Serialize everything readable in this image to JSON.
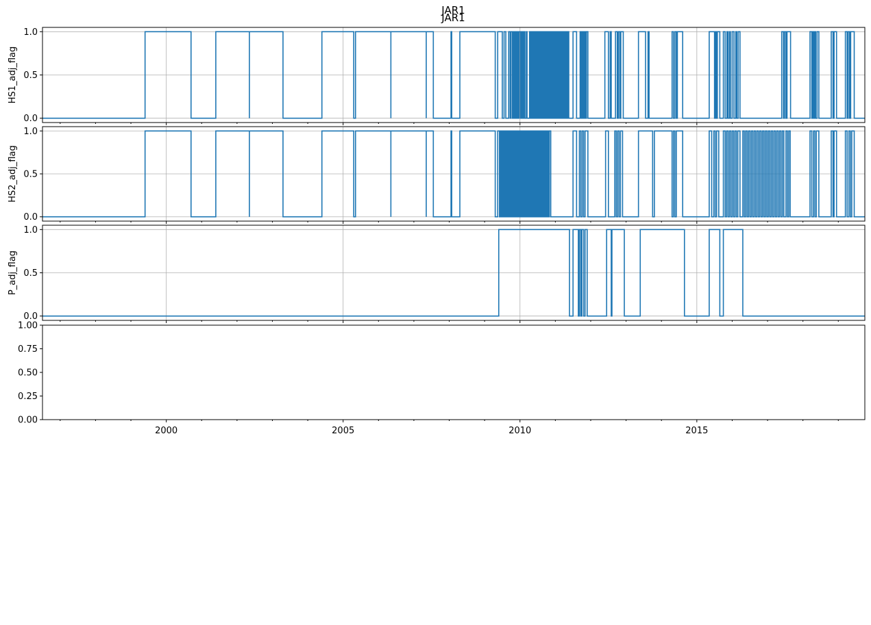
{
  "figure": {
    "suptitle": "JAR1",
    "title": "JAR1"
  },
  "colors": {
    "line": "#1f77b4",
    "grid": "#b0b0b0",
    "axis": "#000000"
  },
  "chart_data": [
    {
      "type": "line",
      "ylabel": "HS1_adj_flag",
      "xlim": [
        1996.5,
        2019.75
      ],
      "ylim": [
        -0.05,
        1.05
      ],
      "yticks": [
        0.0,
        0.5,
        1.0
      ],
      "ytick_labels": [
        "0.0",
        "0.5",
        "1.0"
      ],
      "grid": true,
      "x_tick_labels_visible": false,
      "series": [
        {
          "values_description_free": true,
          "on_intervals": [
            [
              1999.4,
              2000.7
            ],
            [
              2001.4,
              2002.35
            ],
            [
              2002.35,
              2003.3
            ],
            [
              2004.4,
              2005.3
            ],
            [
              2005.35,
              2006.35
            ],
            [
              2006.35,
              2007.35
            ],
            [
              2007.35,
              2007.55
            ],
            [
              2008.05,
              2008.07
            ],
            [
              2008.3,
              2009.3
            ],
            [
              2009.37,
              2009.5
            ],
            [
              2009.55,
              2009.6
            ],
            [
              2009.68,
              2009.72
            ],
            [
              2009.74,
              2009.78
            ],
            [
              2009.8,
              2009.83
            ],
            [
              2009.86,
              2009.89
            ],
            [
              2009.92,
              2009.95
            ],
            [
              2009.98,
              2010.02
            ],
            [
              2010.05,
              2010.08
            ],
            [
              2010.11,
              2010.14
            ],
            [
              2010.18,
              2010.2
            ],
            [
              2010.27,
              2010.3
            ],
            [
              2010.33,
              2010.36
            ],
            [
              2010.39,
              2010.42
            ],
            [
              2010.45,
              2010.48
            ],
            [
              2010.51,
              2010.54
            ],
            [
              2010.57,
              2010.6
            ],
            [
              2010.63,
              2010.66
            ],
            [
              2010.69,
              2010.72
            ],
            [
              2010.75,
              2010.78
            ],
            [
              2010.81,
              2010.84
            ],
            [
              2010.87,
              2010.9
            ],
            [
              2010.93,
              2010.96
            ],
            [
              2010.99,
              2011.02
            ],
            [
              2011.05,
              2011.08
            ],
            [
              2011.11,
              2011.14
            ],
            [
              2011.17,
              2011.2
            ],
            [
              2011.23,
              2011.26
            ],
            [
              2011.29,
              2011.32
            ],
            [
              2011.35,
              2011.38
            ],
            [
              2011.5,
              2011.6
            ],
            [
              2011.7,
              2011.73
            ],
            [
              2011.76,
              2011.79
            ],
            [
              2011.82,
              2011.85
            ],
            [
              2011.88,
              2011.92
            ],
            [
              2012.4,
              2012.5
            ],
            [
              2012.55,
              2012.58
            ],
            [
              2012.7,
              2012.75
            ],
            [
              2012.78,
              2012.82
            ],
            [
              2012.85,
              2012.92
            ],
            [
              2013.35,
              2013.55
            ],
            [
              2013.62,
              2013.65
            ],
            [
              2014.3,
              2014.34
            ],
            [
              2014.38,
              2014.42
            ],
            [
              2014.45,
              2014.6
            ],
            [
              2015.35,
              2015.5
            ],
            [
              2015.52,
              2015.55
            ],
            [
              2015.58,
              2015.65
            ],
            [
              2015.75,
              2015.8
            ],
            [
              2015.85,
              2015.88
            ],
            [
              2015.92,
              2015.95
            ],
            [
              2016.0,
              2016.05
            ],
            [
              2016.1,
              2016.13
            ],
            [
              2016.17,
              2016.22
            ],
            [
              2017.4,
              2017.45
            ],
            [
              2017.48,
              2017.52
            ],
            [
              2017.55,
              2017.65
            ],
            [
              2018.2,
              2018.25
            ],
            [
              2018.28,
              2018.3
            ],
            [
              2018.33,
              2018.36
            ],
            [
              2018.4,
              2018.45
            ],
            [
              2018.8,
              2018.85
            ],
            [
              2018.88,
              2018.95
            ],
            [
              2019.2,
              2019.25
            ],
            [
              2019.28,
              2019.32
            ],
            [
              2019.35,
              2019.45
            ]
          ]
        }
      ]
    },
    {
      "type": "line",
      "ylabel": "HS2_adj_flag",
      "xlim": [
        1996.5,
        2019.75
      ],
      "ylim": [
        -0.05,
        1.05
      ],
      "yticks": [
        0.0,
        0.5,
        1.0
      ],
      "ytick_labels": [
        "0.0",
        "0.5",
        "1.0"
      ],
      "grid": true,
      "x_tick_labels_visible": false,
      "series": [
        {
          "on_intervals": [
            [
              1999.4,
              2000.7
            ],
            [
              2001.4,
              2002.35
            ],
            [
              2002.35,
              2003.3
            ],
            [
              2004.4,
              2005.3
            ],
            [
              2005.35,
              2006.35
            ],
            [
              2006.35,
              2007.35
            ],
            [
              2007.35,
              2007.55
            ],
            [
              2008.05,
              2008.07
            ],
            [
              2008.3,
              2009.3
            ],
            [
              2009.37,
              2009.42
            ],
            [
              2009.45,
              2009.48
            ],
            [
              2009.51,
              2009.54
            ],
            [
              2009.57,
              2009.6
            ],
            [
              2009.63,
              2009.66
            ],
            [
              2009.69,
              2009.72
            ],
            [
              2009.75,
              2009.78
            ],
            [
              2009.81,
              2009.84
            ],
            [
              2009.87,
              2009.9
            ],
            [
              2009.93,
              2009.96
            ],
            [
              2009.99,
              2010.02
            ],
            [
              2010.05,
              2010.08
            ],
            [
              2010.11,
              2010.14
            ],
            [
              2010.17,
              2010.2
            ],
            [
              2010.23,
              2010.26
            ],
            [
              2010.29,
              2010.32
            ],
            [
              2010.35,
              2010.38
            ],
            [
              2010.41,
              2010.44
            ],
            [
              2010.47,
              2010.5
            ],
            [
              2010.53,
              2010.56
            ],
            [
              2010.59,
              2010.62
            ],
            [
              2010.65,
              2010.68
            ],
            [
              2010.71,
              2010.74
            ],
            [
              2010.77,
              2010.8
            ],
            [
              2010.83,
              2010.87
            ],
            [
              2011.5,
              2011.6
            ],
            [
              2011.68,
              2011.72
            ],
            [
              2011.76,
              2011.8
            ],
            [
              2011.84,
              2011.92
            ],
            [
              2012.42,
              2012.5
            ],
            [
              2012.68,
              2012.72
            ],
            [
              2012.76,
              2012.8
            ],
            [
              2012.84,
              2012.9
            ],
            [
              2013.35,
              2013.75
            ],
            [
              2013.8,
              2014.3
            ],
            [
              2014.34,
              2014.38
            ],
            [
              2014.42,
              2014.6
            ],
            [
              2015.35,
              2015.42
            ],
            [
              2015.48,
              2015.52
            ],
            [
              2015.56,
              2015.62
            ],
            [
              2015.75,
              2015.8
            ],
            [
              2015.84,
              2015.88
            ],
            [
              2015.92,
              2015.96
            ],
            [
              2016.0,
              2016.04
            ],
            [
              2016.08,
              2016.12
            ],
            [
              2016.16,
              2016.22
            ],
            [
              2016.3,
              2016.34
            ],
            [
              2016.38,
              2016.42
            ],
            [
              2016.46,
              2016.5
            ],
            [
              2016.54,
              2016.58
            ],
            [
              2016.62,
              2016.66
            ],
            [
              2016.7,
              2016.74
            ],
            [
              2016.78,
              2016.82
            ],
            [
              2016.86,
              2016.9
            ],
            [
              2016.94,
              2016.98
            ],
            [
              2017.02,
              2017.06
            ],
            [
              2017.1,
              2017.14
            ],
            [
              2017.18,
              2017.22
            ],
            [
              2017.26,
              2017.3
            ],
            [
              2017.34,
              2017.38
            ],
            [
              2017.42,
              2017.46
            ],
            [
              2017.52,
              2017.56
            ],
            [
              2017.6,
              2017.64
            ],
            [
              2018.2,
              2018.25
            ],
            [
              2018.3,
              2018.34
            ],
            [
              2018.38,
              2018.45
            ],
            [
              2018.8,
              2018.85
            ],
            [
              2018.88,
              2018.95
            ],
            [
              2019.2,
              2019.25
            ],
            [
              2019.3,
              2019.34
            ],
            [
              2019.38,
              2019.45
            ]
          ]
        }
      ]
    },
    {
      "type": "line",
      "ylabel": "P_adj_flag",
      "xlim": [
        1996.5,
        2019.75
      ],
      "ylim": [
        -0.05,
        1.05
      ],
      "yticks": [
        0.0,
        0.5,
        1.0
      ],
      "ytick_labels": [
        "0.0",
        "0.5",
        "1.0"
      ],
      "grid": true,
      "x_tick_labels_visible": false,
      "series": [
        {
          "on_intervals": [
            [
              2009.4,
              2011.4
            ],
            [
              2011.5,
              2011.65
            ],
            [
              2011.68,
              2011.72
            ],
            [
              2011.75,
              2011.8
            ],
            [
              2011.84,
              2011.9
            ],
            [
              2012.45,
              2012.58
            ],
            [
              2012.6,
              2012.95
            ],
            [
              2013.4,
              2014.65
            ],
            [
              2015.35,
              2015.65
            ],
            [
              2015.75,
              2016.3
            ]
          ]
        }
      ]
    },
    {
      "type": "line",
      "ylabel": "",
      "xlim": [
        1996.5,
        2019.75
      ],
      "ylim": [
        0.0,
        1.0
      ],
      "yticks": [
        0.0,
        0.25,
        0.5,
        0.75,
        1.0
      ],
      "ytick_labels": [
        "0.00",
        "0.25",
        "0.50",
        "0.75",
        "1.00"
      ],
      "grid": false,
      "x_tick_labels_visible": true,
      "xticks": [
        2000,
        2005,
        2010,
        2015
      ],
      "xtick_labels": [
        "2000",
        "2005",
        "2010",
        "2015"
      ],
      "series": []
    }
  ]
}
